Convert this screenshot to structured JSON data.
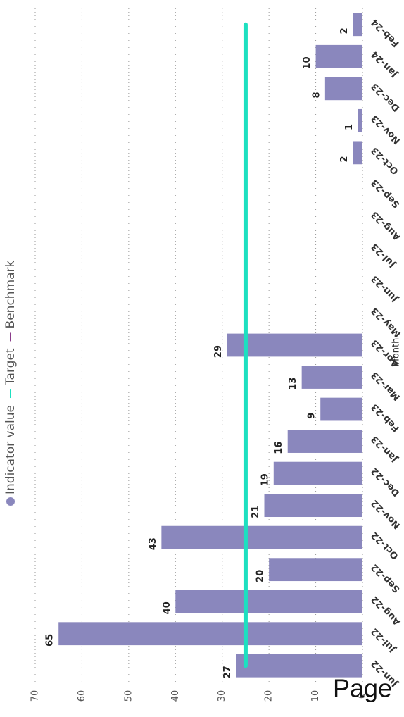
{
  "chart_data": {
    "type": "bar",
    "x_label": "Month",
    "categories": [
      "Jun-22",
      "Jul-22",
      "Aug-22",
      "Sep-22",
      "Oct-22",
      "Nov-22",
      "Dec-22",
      "Jan-23",
      "Feb-23",
      "Mar-23",
      "Apr-23",
      "May-23",
      "Jun-23",
      "Jul-23",
      "Aug-23",
      "Sep-23",
      "Oct-23",
      "Nov-23",
      "Dec-23",
      "Jan-24",
      "Feb-24"
    ],
    "series": [
      {
        "name": "Indicator value",
        "type": "bar",
        "color": "#8a87bd",
        "values": [
          27,
          65,
          40,
          20,
          43,
          21,
          19,
          16,
          9,
          13,
          29,
          null,
          null,
          null,
          null,
          null,
          2,
          1,
          8,
          10,
          2
        ]
      },
      {
        "name": "Target",
        "type": "line",
        "color": "#1de0c0",
        "values": [
          25,
          25,
          25,
          25,
          25,
          25,
          25,
          25,
          25,
          25,
          25,
          25,
          25,
          25,
          25,
          25,
          25,
          25,
          25,
          25,
          25
        ]
      },
      {
        "name": "Benchmark",
        "type": "line",
        "color": "#8a3c8a",
        "values": [
          null,
          null,
          null,
          null,
          null,
          null,
          null,
          null,
          null,
          null,
          null,
          null,
          null,
          null,
          null,
          null,
          null,
          null,
          null,
          null,
          null
        ]
      }
    ],
    "ylim": [
      0,
      70
    ],
    "yticks": [
      0,
      10,
      20,
      30,
      40,
      50,
      60,
      70
    ],
    "grid": true
  },
  "overlay_text": "Page"
}
